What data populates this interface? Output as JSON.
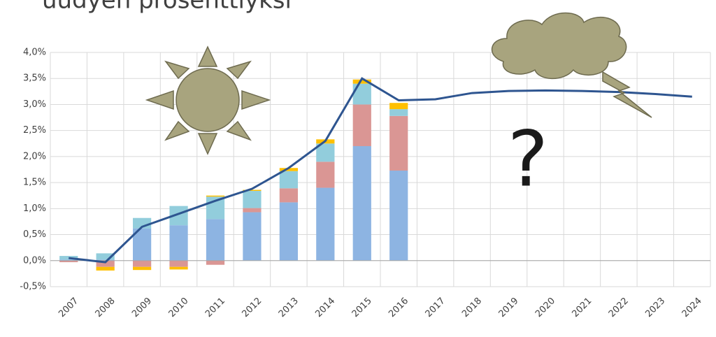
{
  "chart_data": {
    "type": "bar-line",
    "title": "uudyen prosenttiyksi",
    "annotation": "?",
    "categories": [
      "2007",
      "2008",
      "2009",
      "2010",
      "2011",
      "2012",
      "2013",
      "2014",
      "2015",
      "2016",
      "2017",
      "2018",
      "2019",
      "2020",
      "2021",
      "2022",
      "2023",
      "2024"
    ],
    "series": [
      {
        "type": "bar",
        "color": "#8db4e2",
        "values": [
          0.02,
          0.02,
          0.62,
          0.68,
          0.8,
          0.93,
          1.12,
          1.4,
          2.2,
          1.73,
          null,
          null,
          null,
          null,
          null,
          null,
          null,
          null
        ]
      },
      {
        "type": "bar",
        "color": "#da9694",
        "values": [
          -0.03,
          -0.12,
          -0.12,
          -0.12,
          -0.08,
          0.08,
          0.27,
          0.5,
          0.8,
          1.05,
          null,
          null,
          null,
          null,
          null,
          null,
          null,
          null
        ]
      },
      {
        "type": "bar",
        "color": "#92cddc",
        "values": [
          0.07,
          0.12,
          0.2,
          0.37,
          0.43,
          0.33,
          0.33,
          0.35,
          0.4,
          0.13,
          null,
          null,
          null,
          null,
          null,
          null,
          null,
          null
        ]
      },
      {
        "type": "bar",
        "color": "#ffc000",
        "values": [
          0,
          -0.07,
          -0.06,
          -0.05,
          0.02,
          0.02,
          0.06,
          0.08,
          0.08,
          0.12,
          null,
          null,
          null,
          null,
          null,
          null,
          null,
          null
        ]
      },
      {
        "type": "line",
        "color": "#2e5590",
        "values": [
          0.05,
          -0.03,
          0.65,
          0.9,
          1.15,
          1.38,
          1.78,
          2.3,
          3.5,
          3.08,
          3.1,
          3.22,
          3.26,
          3.27,
          3.26,
          3.24,
          3.2,
          3.15
        ]
      }
    ],
    "ylim": [
      -0.5,
      4.0
    ],
    "yticks": [
      {
        "value": -0.5,
        "label": "-0,5%"
      },
      {
        "value": 0,
        "label": "0,0%"
      },
      {
        "value": 0.5,
        "label": "0,5%"
      },
      {
        "value": 1,
        "label": "1,0%"
      },
      {
        "value": 1.5,
        "label": "1,5%"
      },
      {
        "value": 2,
        "label": "2,0%"
      },
      {
        "value": 2.5,
        "label": "2,5%"
      },
      {
        "value": 3,
        "label": "3,0%"
      },
      {
        "value": 3.5,
        "label": "3,5%"
      },
      {
        "value": 4,
        "label": "4,0%"
      }
    ],
    "grid": true
  }
}
